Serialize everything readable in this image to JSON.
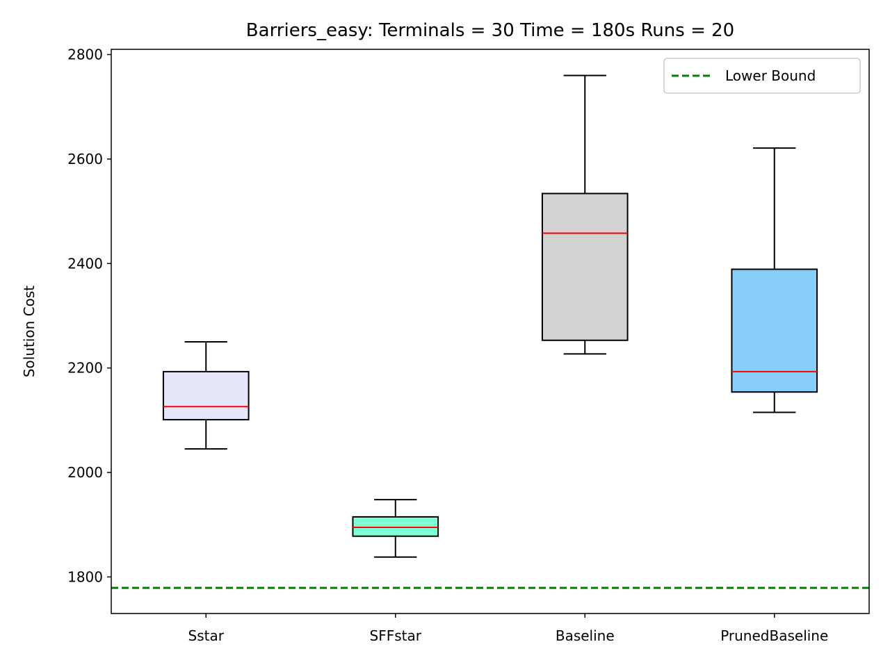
{
  "chart_data": {
    "type": "box",
    "title": "Barriers_easy:  Terminals = 30  Time = 180s  Runs = 20",
    "xlabel": "",
    "ylabel": "Solution Cost",
    "ylim": [
      1730,
      2810
    ],
    "yticks": [
      1800,
      2000,
      2200,
      2400,
      2600,
      2800
    ],
    "grid": false,
    "legend_position": "top-right",
    "categories": [
      "Sstar",
      "SFFstar",
      "Baseline",
      "PrunedBaseline"
    ],
    "series": [
      {
        "category": "Sstar",
        "whisker_low": 2045,
        "q1": 2101,
        "median": 2126,
        "q3": 2193,
        "whisker_high": 2250,
        "color": "#e6e6fa"
      },
      {
        "category": "SFFstar",
        "whisker_low": 1838,
        "q1": 1878,
        "median": 1895,
        "q3": 1915,
        "whisker_high": 1948,
        "color": "#7fffd4"
      },
      {
        "category": "Baseline",
        "whisker_low": 2227,
        "q1": 2253,
        "median": 2458,
        "q3": 2534,
        "whisker_high": 2760,
        "color": "#d3d3d3"
      },
      {
        "category": "PrunedBaseline",
        "whisker_low": 2115,
        "q1": 2154,
        "median": 2193,
        "q3": 2389,
        "whisker_high": 2621,
        "color": "#87cefa"
      }
    ],
    "reference_line": {
      "name": "Lower Bound",
      "value": 1779,
      "color": "#008000",
      "style": "dashed"
    },
    "median_color": "#ff0000"
  }
}
